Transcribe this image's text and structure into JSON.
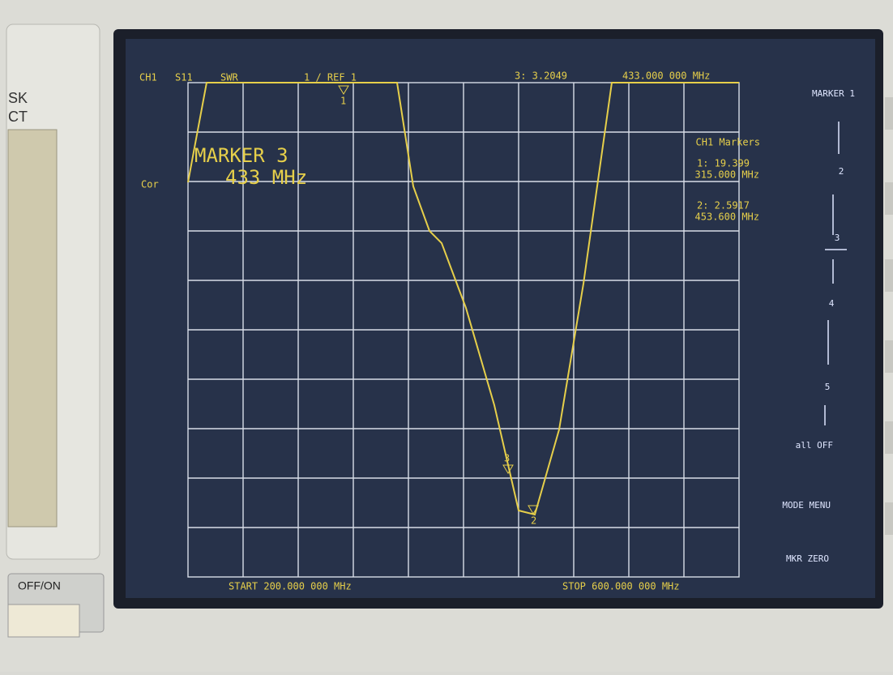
{
  "bezel": {
    "left_top": "SK",
    "left_bottom": "CT",
    "power": "OFF/ON"
  },
  "screen": {
    "header": {
      "channel": "CH1",
      "param": "S11",
      "format": "SWR",
      "scale": "1 / REF 1",
      "active_marker": "3: 3.2049",
      "active_freq": "433.000 000 MHz"
    },
    "marker_box": {
      "title": "MARKER 3",
      "freq": "433 MHz"
    },
    "cor": "Cor",
    "markers_panel": {
      "title": "CH1 Markers",
      "m1_value": "1: 19.399",
      "m1_freq": "315.000 MHz",
      "m2_value": "2: 2.5917",
      "m2_freq": "453.600 MHz"
    },
    "trace_markers": [
      "1",
      "2",
      "3"
    ],
    "footer": {
      "start": "START 200.000 000 MHz",
      "stop": "STOP 600.000 000 MHz"
    },
    "softkeys": [
      "MARKER 1",
      "2",
      "3",
      "4",
      "5",
      "all OFF",
      "MODE MENU",
      "MKR ZERO"
    ]
  }
}
